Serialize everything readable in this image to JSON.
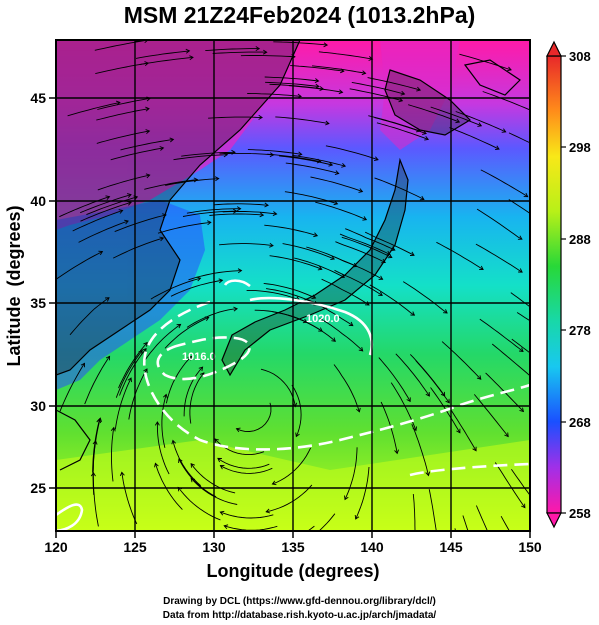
{
  "title": "MSM 21Z24Feb2024 (1013.2hPa)",
  "axes": {
    "xlabel": "Longitude (degrees)",
    "ylabel": "Latitude  (degrees)",
    "x_ticks": [
      "120",
      "125",
      "130",
      "135",
      "140",
      "145",
      "150"
    ],
    "y_ticks": [
      "45",
      "40",
      "35",
      "30",
      "25"
    ]
  },
  "colorbar": {
    "ticks": [
      "308",
      "298",
      "288",
      "278",
      "268",
      "258"
    ],
    "min": 258,
    "max": 308
  },
  "contour_labels": [
    "1020.0",
    "1016.0"
  ],
  "footer": {
    "line1": "Drawing by DCL (https://www.gfd-dennou.org/library/dcl/)",
    "line2": "Data from http://database.rish.kyoto-u.ac.jp/arch/jmadata/"
  },
  "colors": {
    "cold": "#ff1aa8",
    "cool": "#1a60ff",
    "mid": "#18d8d8",
    "warm": "#2ad63a",
    "hot": "#d8ff18",
    "land": "#1a1a1a",
    "isobar": "#ffffff"
  }
}
